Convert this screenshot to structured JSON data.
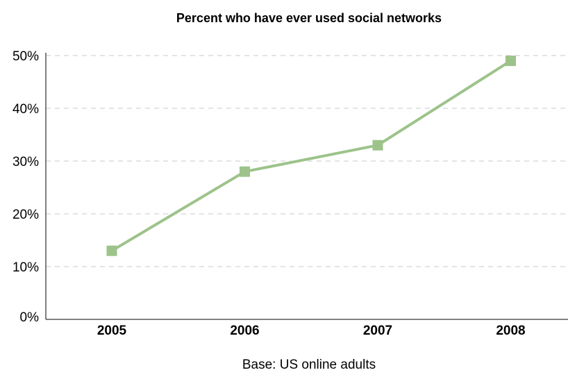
{
  "chart_data": {
    "type": "line",
    "title": "Percent who have ever used social networks",
    "categories": [
      "2005",
      "2006",
      "2007",
      "2008"
    ],
    "series": [
      {
        "values": [
          13,
          28,
          33,
          49
        ],
        "color": "#9dc38a",
        "marker": "square"
      }
    ],
    "ylim": [
      0,
      50
    ],
    "yticks": [
      "0%",
      "10%",
      "20%",
      "30%",
      "40%",
      "50%"
    ],
    "ytick_values": [
      0,
      10,
      20,
      30,
      40,
      50
    ],
    "grid": true,
    "legend": "none",
    "xlabel": "",
    "ylabel": "",
    "note": "Base: US online adults"
  },
  "colors": {
    "line": "#9dc38a",
    "grid": "#c8c8c8",
    "axis": "#000000"
  }
}
